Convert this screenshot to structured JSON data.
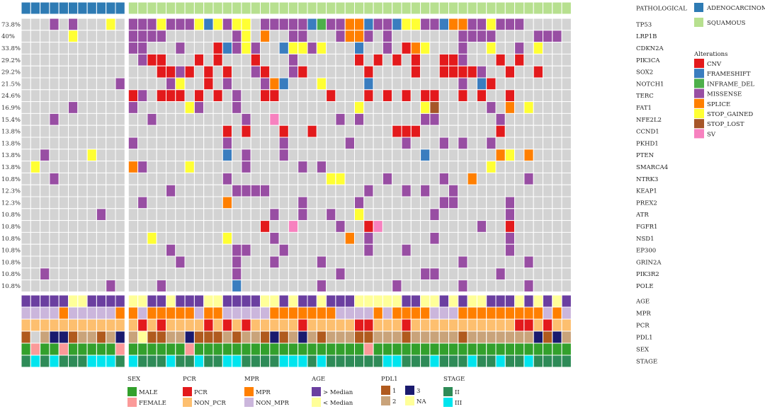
{
  "chart_data": {
    "type": "heatmap",
    "title": "",
    "n_samples": 58,
    "pathology_label": "PATHOLOGICAL",
    "pathology_groups": [
      {
        "name": "ADENOCARCINOMA",
        "color": "#2e7bb4",
        "count": 11
      },
      {
        "name": "SQUAMOUS",
        "color": "#b7e08f",
        "count": 47
      }
    ],
    "alteration_types": [
      {
        "code": "C",
        "name": "CNV",
        "color": "#e31a1c"
      },
      {
        "code": "F",
        "name": "FRAMESHIFT",
        "color": "#3a7dbf"
      },
      {
        "code": "I",
        "name": "INFRAME_DEL",
        "color": "#4daf4a"
      },
      {
        "code": "M",
        "name": "MISSENSE",
        "color": "#984ea3"
      },
      {
        "code": "S",
        "name": "SPLICE",
        "color": "#ff7f00"
      },
      {
        "code": "G",
        "name": "STOP_GAINED",
        "color": "#ffff33"
      },
      {
        "code": "L",
        "name": "STOP_LOST",
        "color": "#a65628"
      },
      {
        "code": "V",
        "name": "SV",
        "color": "#f781bf"
      }
    ],
    "alterations_title": "Alterations",
    "genes": [
      {
        "name": "TP53",
        "pct": "73.8%",
        "row": "...M.M...G.MMMGMMMGFGMGG.MMMMMFIMMSSFMMFGGMMFSSMMGMMM....."
      },
      {
        "name": "LRP1B",
        "pct": "40%",
        "row": ".....G.....MMMM.......MG.S..MM...MSSM.M.......MMMM....MMM...."
      },
      {
        "name": "CDKN2A",
        "pct": "33.8%",
        "row": "...........MM...M...CFMGM..FGGMG...F..M.CSG...M..G..M.G...."
      },
      {
        "name": "PIK3CA",
        "pct": "29.2%",
        "row": "............MCC...C.C...C...M......C.C.C.C..CCM...C.C......"
      },
      {
        "name": "SOX2",
        "pct": "29.2%",
        "row": "..............CCMC.C.C..MC..MC......C....C..CCCCM..C..C......"
      },
      {
        "name": "NOTCH1",
        "pct": "21.5%",
        "row": "..........M....MG..C.M...MSF...G....F.........M.FC.........."
      },
      {
        "name": "TERC",
        "pct": "24.6%",
        "row": "...........CM.CCC.C.C.M..CC.....C...C.C.C.CC..C.C..C........."
      },
      {
        "name": "FAT1",
        "pct": "16.9%",
        "row": ".....M.....M.....GM...M............G......GL.....M.S.G......"
      },
      {
        "name": "NFE2L2",
        "pct": "15.4%",
        "row": "...M.........M.........M..V......M.M......MM......M..........."
      },
      {
        "name": "CCND1",
        "pct": "13.8%",
        "row": ".....................C.C...C..C........CCC........C.........."
      },
      {
        "name": "PKHD1",
        "pct": "13.8%",
        "row": "...........M.........M.....M......M.....M...M.M..M..........."
      },
      {
        "name": "PTEN",
        "pct": "13.8%",
        "row": "..M....G.............F.M...M..............F.......SG.S........"
      },
      {
        "name": "SMARCA4",
        "pct": "13.8%",
        "row": ".G.........SM....G.....M.....M.M.................G.........M.."
      },
      {
        "name": "NTRK3",
        "pct": "10.8%",
        "row": "...M.................M..........GG....M.....M..S.....M........"
      },
      {
        "name": "KEAP1",
        "pct": "12.3%",
        "row": "...............M......MMMM..........M...M.M..M................"
      },
      {
        "name": "PREX2",
        "pct": "12.3%",
        "row": "............M........S.......M.....M........MM.....M.........."
      },
      {
        "name": "ATR",
        "pct": "10.8%",
        "row": "........M.................M..M..M..G.......M.......M.........."
      },
      {
        "name": "FGFR1",
        "pct": "10.8%",
        "row": ".........................C..V....M..CV..........M..C........."
      },
      {
        "name": "NSD1",
        "pct": "10.8%",
        "row": ".............G.......G....M.......S.M......M.......M.........."
      },
      {
        "name": "EP300",
        "pct": "10.8%",
        "row": "...............M......MM...M........M...M..........M.........."
      },
      {
        "name": "GRIN2A",
        "pct": "10.8%",
        "row": "................M.....M...M....M..............M......M........"
      },
      {
        "name": "PIK3R2",
        "pct": "10.8%",
        "row": "..M...................M..........M........MM......M..........."
      },
      {
        "name": "POLE",
        "pct": "10.8%",
        "row": ".........M....M.......F........M.......M......M......M........"
      }
    ],
    "clinical": [
      {
        "name": "AGE",
        "row": "PPPPPYYPPPPYYPPYPPPYYPPPPYYPYPPYPPPYYYYYPPYYPYPYYPPPYPYPYP",
        "map": {
          "P": "#6b3fa0",
          "Y": "#ffff99"
        }
      },
      {
        "name": "MPR",
        "row": "LLLLOLLLLLOOLOOOOOLOOLLLLLOOOOOOOLLLLOLOOOOLLLOOOOOOOOOLOLO",
        "map": {
          "O": "#ff7f00",
          "L": "#cbb6dc"
        }
      },
      {
        "name": "PCR",
        "row": "TTTTTTTTTTTTRTRTTTTRTRTRTTTTTRTTTTTRRTTTRTTTTTTTTTTTRRTRTTT",
        "map": {
          "R": "#e31a1c",
          "T": "#fdbf6f"
        }
      },
      {
        "name": "PDL1",
        "row": "ALBDDABBABDBNAABBDAAABABBADABDBABBBAABBBABBBBBABBBBBBBDADBBD",
        "map": {
          "A": "#b05a1e",
          "B": "#c9a37a",
          "D": "#1a1a6e",
          "N": "#ffff99"
        }
      },
      {
        "name": "SEX",
        "row": "GFGGFGGGGGFGGGGGGFGGGGGGGGGGGGGGGGGGFGGGGGGGGGGGGGGGGGGGGGGG",
        "map": {
          "G": "#33a02c",
          "F": "#fb9a99"
        }
      },
      {
        "name": "STAGE",
        "row": "TCTCTTTCCCTCTTTCTTCTTCCTTTTCCCTCTTTTTTCCTTTCTTTCTTCTTCTTTT",
        "map": {
          "T": "#2e8b57",
          "C": "#00e5ee"
        }
      }
    ],
    "clinical_legends": [
      {
        "title": "SEX",
        "items": [
          {
            "label": "MALE",
            "color": "#33a02c"
          },
          {
            "label": "FEMALE",
            "color": "#fb9a99"
          }
        ]
      },
      {
        "title": "PCR",
        "items": [
          {
            "label": "PCR",
            "color": "#e31a1c"
          },
          {
            "label": "NON_PCR",
            "color": "#fdbf6f"
          }
        ]
      },
      {
        "title": "MPR",
        "items": [
          {
            "label": "MPR",
            "color": "#ff7f00"
          },
          {
            "label": "NON_MPR",
            "color": "#cbb6dc"
          }
        ]
      },
      {
        "title": "AGE",
        "items": [
          {
            "label": "> Median",
            "color": "#6b3fa0"
          },
          {
            "label": "< Median",
            "color": "#ffff99"
          }
        ]
      },
      {
        "title": "PDL1",
        "items": [
          {
            "label": "1",
            "color": "#b05a1e"
          },
          {
            "label": "3",
            "color": "#1a1a6e"
          },
          {
            "label": "2",
            "color": "#c9a37a"
          },
          {
            "label": "NA",
            "color": "#ffff99"
          }
        ]
      },
      {
        "title": "STAGE",
        "items": [
          {
            "label": "II",
            "color": "#2e8b57"
          },
          {
            "label": "III",
            "color": "#00e5ee"
          }
        ]
      }
    ],
    "colors": {
      "empty": "#d3d3d3",
      "cell_border": "#ffffff"
    }
  }
}
